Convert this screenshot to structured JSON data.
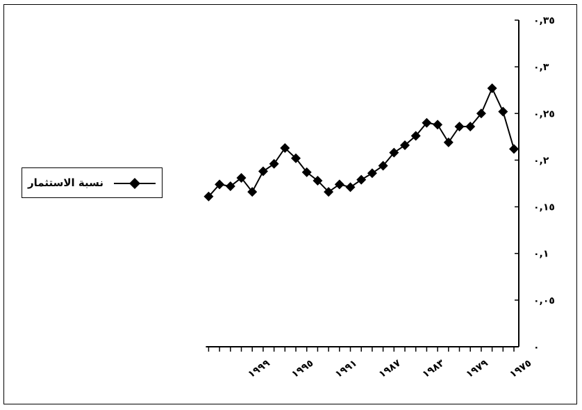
{
  "chart_data": {
    "type": "line",
    "title": "",
    "xlabel": "",
    "ylabel": "",
    "x": [
      1975,
      1976,
      1977,
      1978,
      1979,
      1980,
      1981,
      1982,
      1983,
      1984,
      1985,
      1986,
      1987,
      1988,
      1989,
      1990,
      1991,
      1992,
      1993,
      1994,
      1995,
      1996,
      1997,
      1998,
      1999,
      2000,
      2001,
      2002,
      2003
    ],
    "x_tick_labels": [
      "١٩٧٥",
      "١٩٧٩",
      "١٩٨٣",
      "١٩٨٧",
      "١٩٩١",
      "١٩٩٥",
      "١٩٩٩"
    ],
    "x_tick_values": [
      1975,
      1979,
      1983,
      1987,
      1991,
      1995,
      1999
    ],
    "y_tick_labels": [
      "٠",
      "٠,٠٥",
      "٠,١",
      "٠,١٥",
      "٠,٢",
      "٠,٢٥",
      "٠,٣",
      "٠,٣٥"
    ],
    "y_tick_values": [
      0,
      0.05,
      0.1,
      0.15,
      0.2,
      0.25,
      0.3,
      0.35
    ],
    "ylim": [
      0,
      0.35
    ],
    "x_axis_reversed": true,
    "y_axis_position": "right",
    "grid": false,
    "legend_position": "left",
    "series": [
      {
        "name": "نسبة الاستثمار",
        "marker": "diamond",
        "color": "#000000",
        "values": [
          0.212,
          0.252,
          0.277,
          0.25,
          0.236,
          0.236,
          0.219,
          0.238,
          0.24,
          0.226,
          0.216,
          0.208,
          0.194,
          0.186,
          0.179,
          0.171,
          0.174,
          0.166,
          0.178,
          0.187,
          0.202,
          0.213,
          0.196,
          0.188,
          0.166,
          0.181,
          0.172,
          0.174,
          0.161
        ]
      }
    ]
  }
}
